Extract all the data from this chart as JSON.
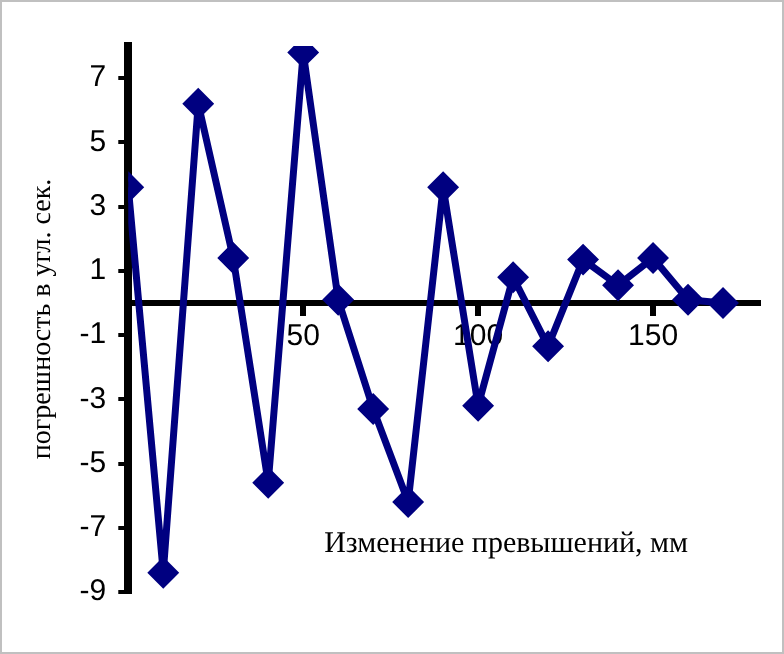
{
  "chart_data": {
    "type": "line",
    "xlabel": "Изменение превышений, мм",
    "ylabel": "погрешность в угл. сек.",
    "x": [
      0,
      10,
      20,
      30,
      40,
      50,
      60,
      70,
      80,
      90,
      100,
      110,
      120,
      130,
      140,
      150,
      160,
      170
    ],
    "series": [
      {
        "color": "#000080",
        "values": [
          3.6,
          -8.4,
          6.2,
          1.4,
          -5.6,
          7.8,
          0.1,
          -3.3,
          -6.2,
          3.6,
          -3.2,
          0.8,
          -1.35,
          1.35,
          0.55,
          1.4,
          0.1,
          0
        ]
      }
    ],
    "xlim": [
      0,
      180
    ],
    "xticks": [
      {
        "value": 0,
        "label": null
      },
      50,
      100,
      150
    ],
    "ylim": [
      -9,
      8
    ],
    "yticks": [
      7,
      5,
      3,
      1,
      -1,
      -3,
      -5,
      -7,
      -9
    ],
    "grid": false,
    "legend": false,
    "marker": "diamond",
    "line_style": "solid"
  }
}
